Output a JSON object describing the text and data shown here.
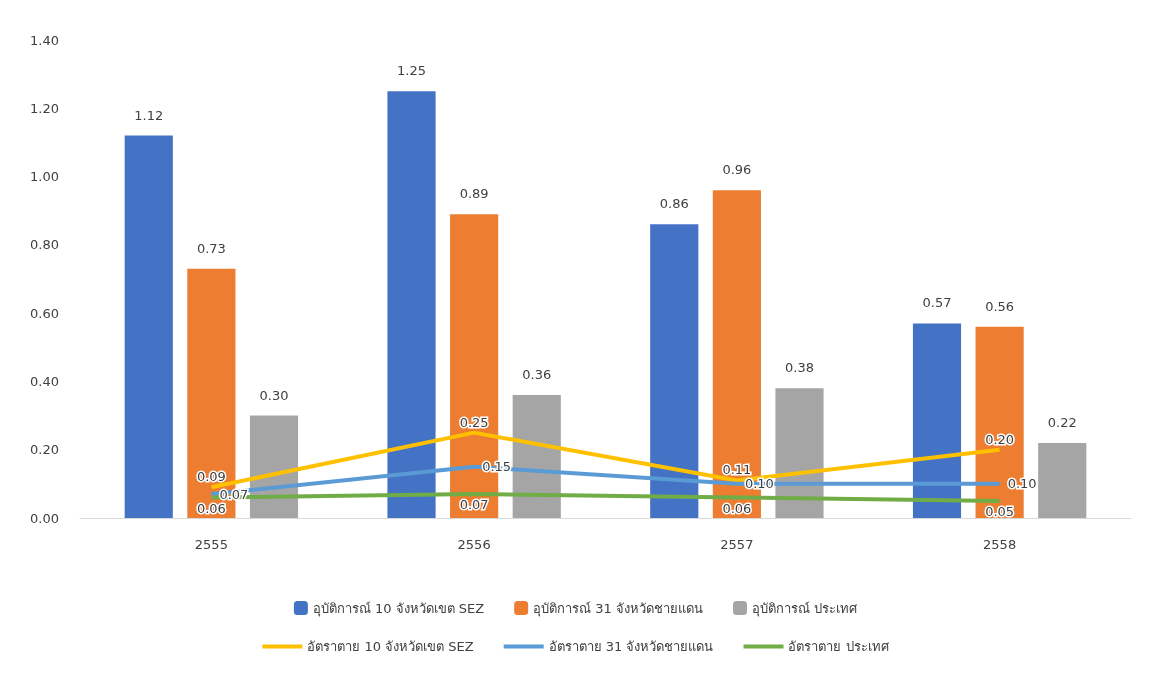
{
  "chart_data": {
    "type": "bar",
    "categories": [
      "2555",
      "2556",
      "2557",
      "2558"
    ],
    "ylim": [
      0,
      1.4
    ],
    "yticks": [
      {
        "value": 0,
        "label": "0.00"
      },
      {
        "value": 0.2,
        "label": "0.20"
      },
      {
        "value": 0.4,
        "label": "0.40"
      },
      {
        "value": 0.6,
        "label": "0.60"
      },
      {
        "value": 0.8,
        "label": "0.80"
      },
      {
        "value": 1,
        "label": "1.00"
      },
      {
        "value": 1.2,
        "label": "1.20"
      },
      {
        "value": 1.4,
        "label": "1.40"
      }
    ],
    "grid": false,
    "legend": "bottom",
    "marker": "none",
    "series": [
      {
        "name": "อุบัติการณ์ 10 จังหวัดเขต SEZ",
        "color": "#4472c4",
        "values": [
          1.12,
          1.25,
          0.86,
          0.57
        ],
        "value_labels": [
          "1.12",
          "1.25",
          "0.86",
          "0.57"
        ]
      },
      {
        "name": "อุบัติการณ์ 31 จังหวัดชายแดน",
        "color": "#ed7d31",
        "values": [
          0.73,
          0.89,
          0.96,
          0.56
        ],
        "value_labels": [
          "0.73",
          "0.89",
          "0.96",
          "0.56"
        ]
      },
      {
        "name": "อุบัติการณ์ ประเทศ",
        "color": "#a5a5a5",
        "values": [
          0.3,
          0.36,
          0.38,
          0.22
        ],
        "value_labels": [
          "0.30",
          "0.36",
          "0.38",
          "0.22"
        ]
      },
      {
        "name": "อัตราตาย 10 จังหวัดเขต SEZ",
        "type": "line",
        "color": "#ffc000",
        "values": [
          0.09,
          0.25,
          0.11,
          0.2
        ],
        "value_labels": [
          "0.09",
          "0.25",
          "0.11",
          "0.20"
        ]
      },
      {
        "name": "อัตราตาย 31 จังหวัดชายแดน",
        "type": "line",
        "color": "#5b9bd5",
        "values": [
          0.07,
          0.15,
          0.1,
          0.1
        ],
        "value_labels": [
          "0.07",
          "0.15",
          "0.10",
          "0.10"
        ]
      },
      {
        "name": "อัตราตาย ประเทศ",
        "type": "line",
        "color": "#70ad47",
        "values": [
          0.06,
          0.07,
          0.06,
          0.05
        ],
        "value_labels": [
          "0.06",
          "0.07",
          "0.06",
          "0.05"
        ]
      }
    ]
  }
}
